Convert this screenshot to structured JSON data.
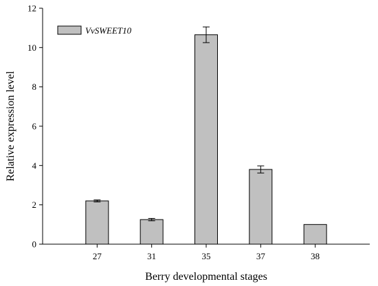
{
  "chart_data": {
    "type": "bar",
    "xlabel": "Berry developmental stages",
    "ylabel": "Relative expression level",
    "categories": [
      "27",
      "31",
      "35",
      "37",
      "38"
    ],
    "series": [
      {
        "name": "VvSWEET10",
        "values": [
          2.2,
          1.25,
          10.65,
          3.8,
          1.0
        ],
        "errors": [
          0.05,
          0.06,
          0.4,
          0.18,
          0.0
        ],
        "color": "#c0c0c0"
      }
    ],
    "ylim": [
      0,
      12
    ],
    "yticks": [
      "0",
      "2",
      "4",
      "6",
      "8",
      "10",
      "12"
    ],
    "legend": "top-left",
    "grid": false
  }
}
